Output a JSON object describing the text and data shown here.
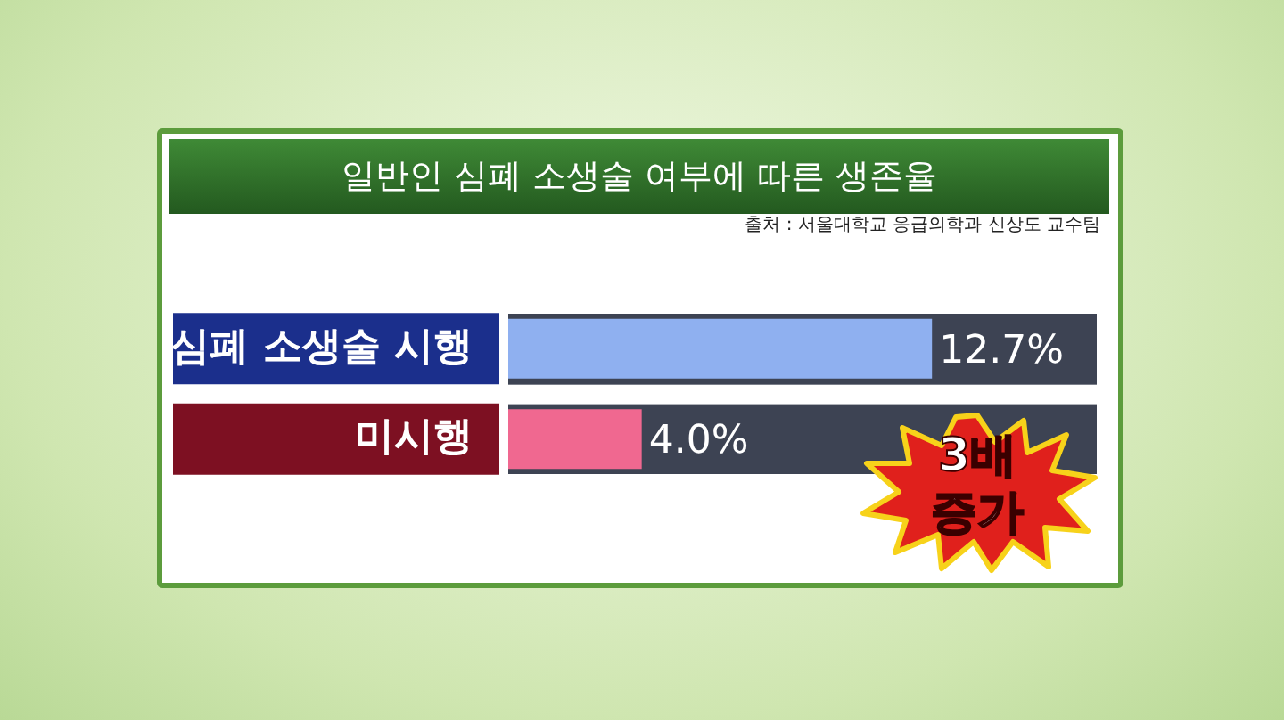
{
  "chart_data": {
    "type": "bar",
    "orientation": "horizontal",
    "title": "일반인 심폐 소생술 여부에 따른 생존율",
    "annotations": [
      "출처 : 서울대학교 응급의학과 신상도 교수팀",
      "3배 증가"
    ],
    "categories": [
      "심폐 소생술 시행",
      "미시행"
    ],
    "values": [
      12.7,
      4.0
    ],
    "colors": [
      "#8fb0f0",
      "#f06890"
    ],
    "value_labels": [
      "12.7%",
      "4.0%"
    ]
  }
}
